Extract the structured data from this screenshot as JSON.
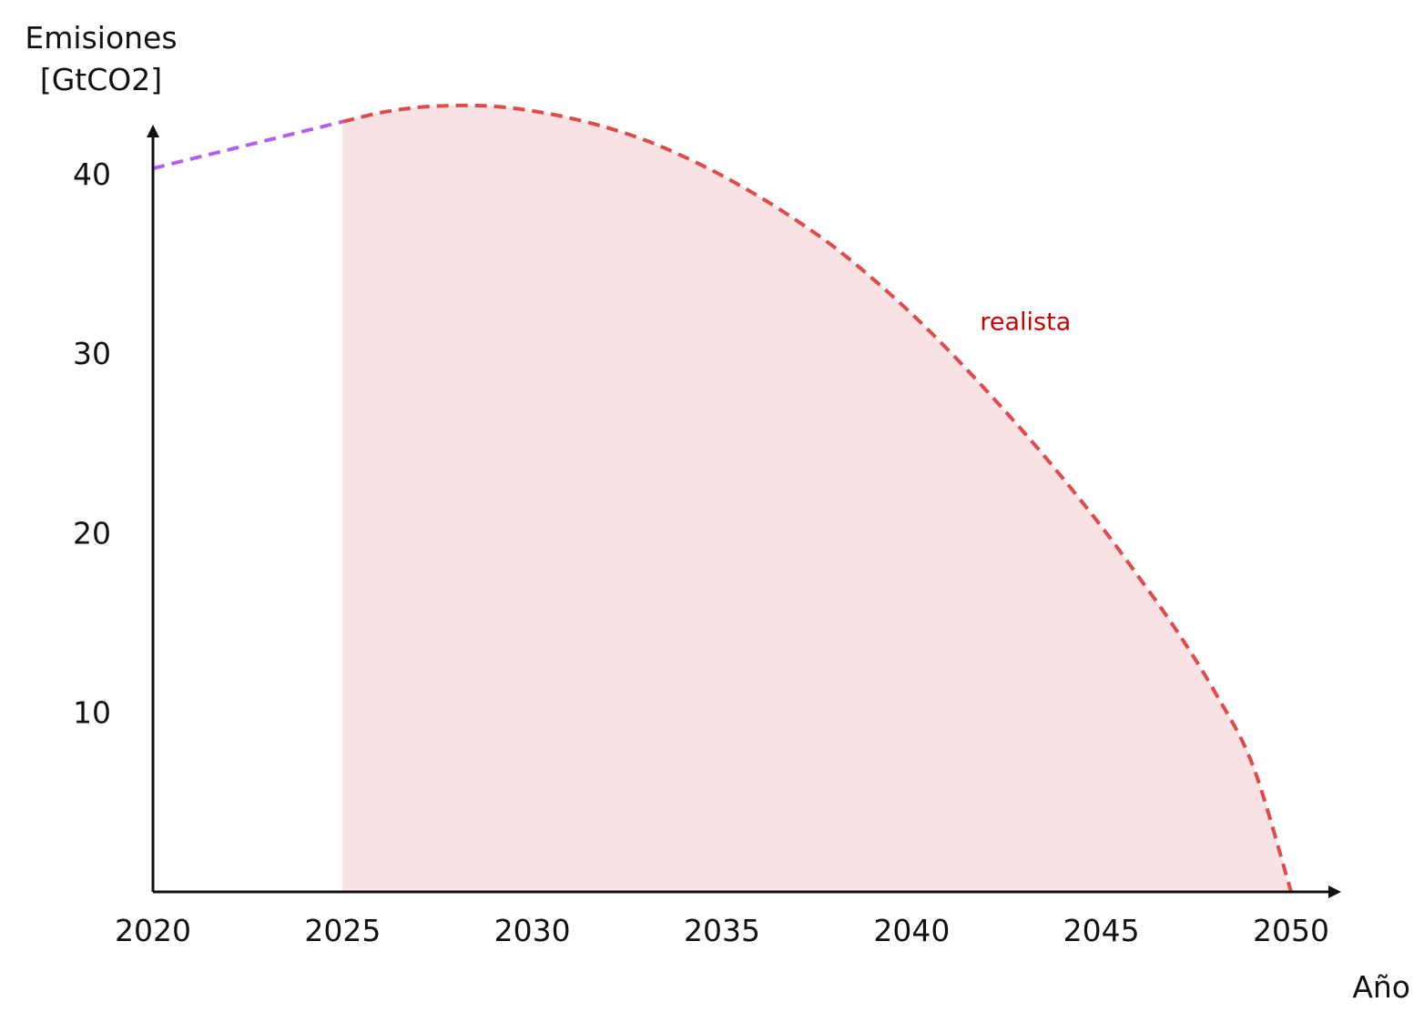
{
  "chart_data": {
    "type": "area",
    "x_axis": {
      "title": "Año",
      "range": [
        2020,
        2050
      ],
      "ticks": [
        2020,
        2025,
        2030,
        2035,
        2040,
        2045,
        2050
      ]
    },
    "y_axis": {
      "title_lines": [
        "Emisiones",
        "[GtCO2]"
      ],
      "range": [
        0,
        44
      ],
      "ticks": [
        10,
        20,
        30,
        40
      ]
    },
    "grid": false,
    "series": [
      {
        "role": "historical",
        "style": "dashed",
        "color": "#b360f2",
        "points": [
          [
            2020,
            40.3
          ],
          [
            2025,
            42.9
          ]
        ]
      },
      {
        "name": "realista",
        "style": "dashed",
        "color": "#e04a4a",
        "fill_color": "#f8e2e3",
        "points": [
          [
            2025,
            42.9
          ],
          [
            2026,
            43.4
          ],
          [
            2027,
            43.7
          ],
          [
            2028,
            43.8
          ],
          [
            2029,
            43.75
          ],
          [
            2030,
            43.5
          ],
          [
            2031,
            43.1
          ],
          [
            2032,
            42.55
          ],
          [
            2033,
            41.85
          ],
          [
            2034,
            40.95
          ],
          [
            2035,
            39.9
          ],
          [
            2036,
            38.7
          ],
          [
            2037,
            37.35
          ],
          [
            2038,
            35.85
          ],
          [
            2039,
            34.1
          ],
          [
            2040,
            32.2
          ],
          [
            2041,
            30.1
          ],
          [
            2042,
            27.85
          ],
          [
            2043,
            25.5
          ],
          [
            2044,
            23.0
          ],
          [
            2045,
            20.35
          ],
          [
            2046,
            17.5
          ],
          [
            2047,
            14.5
          ],
          [
            2048,
            11.1
          ],
          [
            2049,
            7.0
          ],
          [
            2050,
            0.0
          ]
        ]
      }
    ],
    "annotations": [
      {
        "text": "realista",
        "x": 2043.0,
        "y": 31.3,
        "color": "#cc0000"
      }
    ],
    "axis_color": "#111111"
  }
}
